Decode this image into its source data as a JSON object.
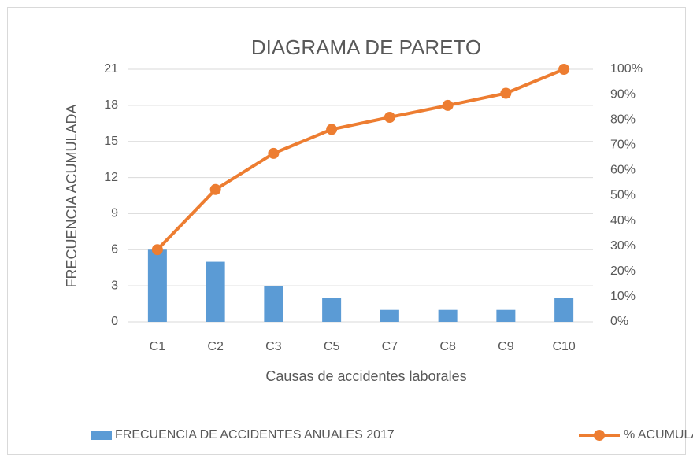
{
  "chart_data": {
    "type": "bar_line",
    "title": "DIAGRAMA DE PARETO",
    "x_label": "Causas de accidentes laborales",
    "y_label": "FRECUENCIA ACUMULADA",
    "categories": [
      "C1",
      "C2",
      "C3",
      "C5",
      "C7",
      "C8",
      "C9",
      "C10"
    ],
    "series": [
      {
        "name": "FRECUENCIA DE ACCIDENTES ANUALES 2017",
        "type": "bar",
        "color": "#5b9bd5",
        "values": [
          6,
          5,
          3,
          2,
          1,
          1,
          1,
          2
        ]
      },
      {
        "name": "% ACUMULADO",
        "type": "line",
        "axis": "y2",
        "color": "#ed7d31",
        "values": [
          28.6,
          52.4,
          66.7,
          76.2,
          81.0,
          85.7,
          90.5,
          100
        ]
      }
    ],
    "ylim": [
      0,
      21
    ],
    "yticks": [
      0,
      3,
      6,
      9,
      12,
      15,
      18,
      21
    ],
    "y2lim": [
      0,
      100
    ],
    "y2ticks": [
      {
        "value": 0,
        "label": "0%"
      },
      {
        "value": 10,
        "label": "10%"
      },
      {
        "value": 20,
        "label": "20%"
      },
      {
        "value": 30,
        "label": "30%"
      },
      {
        "value": 40,
        "label": "40%"
      },
      {
        "value": 50,
        "label": "50%"
      },
      {
        "value": 60,
        "label": "60%"
      },
      {
        "value": 70,
        "label": "70%"
      },
      {
        "value": 80,
        "label": "80%"
      },
      {
        "value": 90,
        "label": "90%"
      },
      {
        "value": 100,
        "label": "100%"
      }
    ],
    "grid": true,
    "legend": "bottom"
  }
}
